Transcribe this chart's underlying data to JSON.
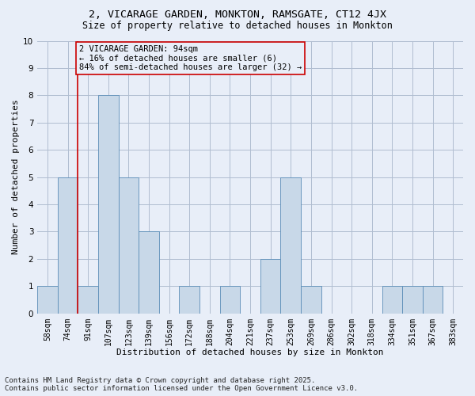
{
  "title": "2, VICARAGE GARDEN, MONKTON, RAMSGATE, CT12 4JX",
  "subtitle": "Size of property relative to detached houses in Monkton",
  "xlabel": "Distribution of detached houses by size in Monkton",
  "ylabel": "Number of detached properties",
  "footer_line1": "Contains HM Land Registry data © Crown copyright and database right 2025.",
  "footer_line2": "Contains public sector information licensed under the Open Government Licence v3.0.",
  "annotation_line1": "2 VICARAGE GARDEN: 94sqm",
  "annotation_line2": "← 16% of detached houses are smaller (6)",
  "annotation_line3": "84% of semi-detached houses are larger (32) →",
  "categories": [
    "58sqm",
    "74sqm",
    "91sqm",
    "107sqm",
    "123sqm",
    "139sqm",
    "156sqm",
    "172sqm",
    "188sqm",
    "204sqm",
    "221sqm",
    "237sqm",
    "253sqm",
    "269sqm",
    "286sqm",
    "302sqm",
    "318sqm",
    "334sqm",
    "351sqm",
    "367sqm",
    "383sqm"
  ],
  "values": [
    1,
    5,
    1,
    8,
    5,
    3,
    0,
    1,
    0,
    1,
    0,
    2,
    5,
    1,
    0,
    0,
    0,
    1,
    1,
    1,
    0
  ],
  "bar_color": "#c8d8e8",
  "bar_edge_color": "#5b8db8",
  "highlight_index": 2,
  "highlight_line_color": "#cc0000",
  "annotation_box_color": "#cc0000",
  "ylim": [
    0,
    10
  ],
  "background_color": "#e8eef8",
  "grid_color": "#b0bdd0",
  "title_fontsize": 9.5,
  "subtitle_fontsize": 8.5,
  "axis_label_fontsize": 8,
  "tick_fontsize": 7,
  "annotation_fontsize": 7.5,
  "footer_fontsize": 6.5
}
